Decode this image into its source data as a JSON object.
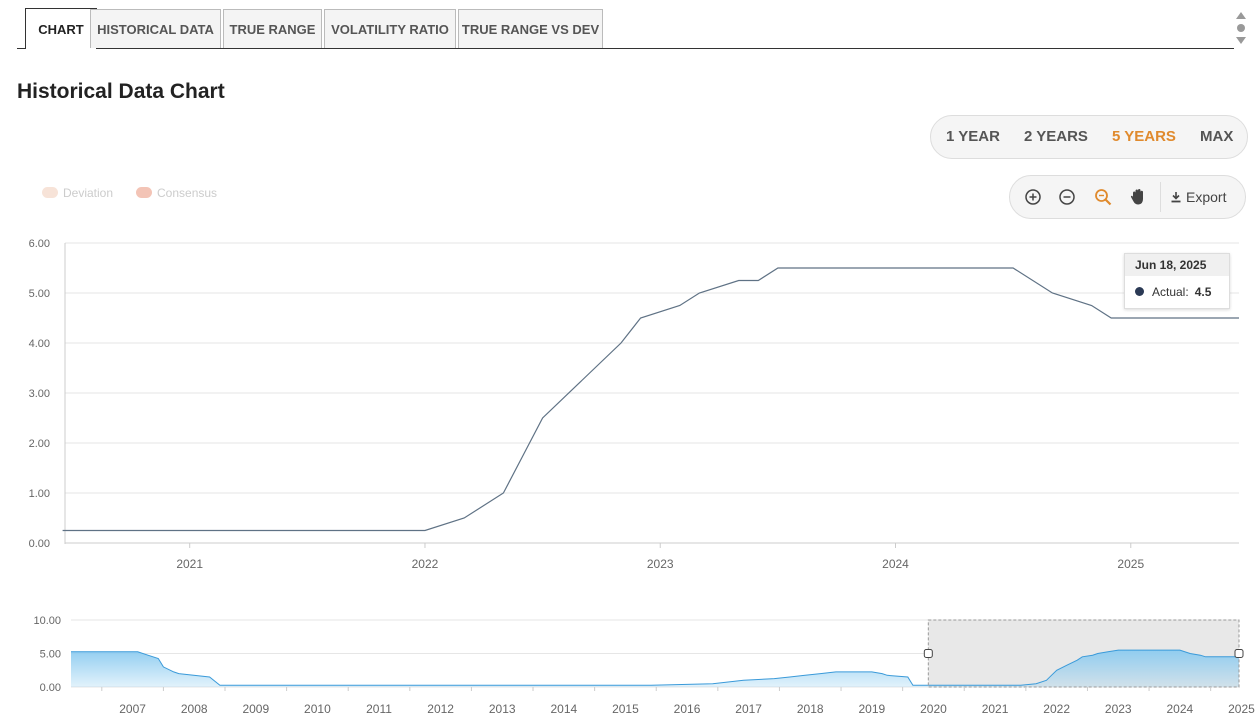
{
  "tabs": [
    {
      "label": "CHART",
      "active": true
    },
    {
      "label": "HISTORICAL DATA",
      "active": false
    },
    {
      "label": "TRUE RANGE",
      "active": false
    },
    {
      "label": "VOLATILITY RATIO",
      "active": false
    },
    {
      "label": "TRUE RANGE VS DEV",
      "active": false
    }
  ],
  "page_title": "Historical Data Chart",
  "range_buttons": [
    {
      "label": "1 YEAR",
      "active": false
    },
    {
      "label": "2 YEARS",
      "active": false
    },
    {
      "label": "5 YEARS",
      "active": true
    },
    {
      "label": "MAX",
      "active": false
    }
  ],
  "toolbar": {
    "icons": [
      "zoom-in-icon",
      "zoom-out-icon",
      "zoom-select-icon",
      "pan-hand-icon"
    ],
    "export_label": "Export",
    "export_icon": "download-icon"
  },
  "legend": [
    {
      "label": "Deviation",
      "color": "#f7d9c9"
    },
    {
      "label": "Consensus",
      "color": "#f2b7a8"
    }
  ],
  "tooltip": {
    "date": "Jun 18, 2025",
    "label": "Actual:",
    "value": "4.5"
  },
  "colors": {
    "accent": "#e08a2d",
    "line": "#5f7285",
    "navigator_line": "#3a9ad9",
    "navigator_fill": "#8ccbf0"
  },
  "chart_data": [
    {
      "type": "line",
      "series": [
        {
          "name": "Actual",
          "x": [
            "2020-06",
            "2020-09",
            "2020-12",
            "2021-03",
            "2021-06",
            "2021-09",
            "2021-12",
            "2022-01",
            "2022-03",
            "2022-05",
            "2022-06",
            "2022-07",
            "2022-09",
            "2022-11",
            "2022-12",
            "2023-02",
            "2023-03",
            "2023-05",
            "2023-06",
            "2023-07",
            "2024-07",
            "2024-09",
            "2024-11",
            "2024-12",
            "2025-06"
          ],
          "values": [
            0.25,
            0.25,
            0.25,
            0.25,
            0.25,
            0.25,
            0.25,
            0.25,
            0.5,
            1.0,
            1.75,
            2.5,
            3.25,
            4.0,
            4.5,
            4.75,
            5.0,
            5.25,
            5.25,
            5.5,
            5.5,
            5.0,
            4.75,
            4.5,
            4.5
          ]
        }
      ],
      "ylim": [
        0,
        6
      ],
      "y_ticks": [
        "0.00",
        "1.00",
        "2.00",
        "3.00",
        "4.00",
        "5.00",
        "6.00"
      ],
      "x_ticks": [
        "2021",
        "2022",
        "2023",
        "2024",
        "2025"
      ],
      "grid": true
    },
    {
      "type": "area",
      "series": [
        {
          "x": [
            "2006-07",
            "2007-08",
            "2007-10",
            "2007-12",
            "2008-01",
            "2008-03",
            "2008-04",
            "2008-10",
            "2008-12",
            "2015-12",
            "2016-12",
            "2017-03",
            "2017-06",
            "2017-12",
            "2018-03",
            "2018-06",
            "2018-09",
            "2018-12",
            "2019-07",
            "2019-09",
            "2019-10",
            "2020-02",
            "2020-03",
            "2021-12",
            "2022-03",
            "2022-05",
            "2022-06",
            "2022-07",
            "2022-09",
            "2022-11",
            "2022-12",
            "2023-02",
            "2023-03",
            "2023-05",
            "2023-07",
            "2024-07",
            "2024-09",
            "2024-11",
            "2024-12",
            "2025-06"
          ],
          "values": [
            5.25,
            5.25,
            4.75,
            4.25,
            3.0,
            2.25,
            2.0,
            1.5,
            0.25,
            0.25,
            0.5,
            0.75,
            1.0,
            1.25,
            1.5,
            1.75,
            2.0,
            2.25,
            2.25,
            2.0,
            1.75,
            1.5,
            0.25,
            0.25,
            0.5,
            1.0,
            1.75,
            2.5,
            3.25,
            4.0,
            4.5,
            4.75,
            5.0,
            5.25,
            5.5,
            5.5,
            5.0,
            4.75,
            4.5,
            4.5
          ]
        }
      ],
      "ylim": [
        0,
        10
      ],
      "y_ticks": [
        "0.00",
        "5.00",
        "10.00"
      ],
      "x_ticks": [
        "2007",
        "2008",
        "2009",
        "2010",
        "2011",
        "2012",
        "2013",
        "2014",
        "2015",
        "2016",
        "2017",
        "2018",
        "2019",
        "2020",
        "2021",
        "2022",
        "2023",
        "2024",
        "2025"
      ],
      "selected_range": [
        "2020-06",
        "2025-06"
      ]
    }
  ]
}
